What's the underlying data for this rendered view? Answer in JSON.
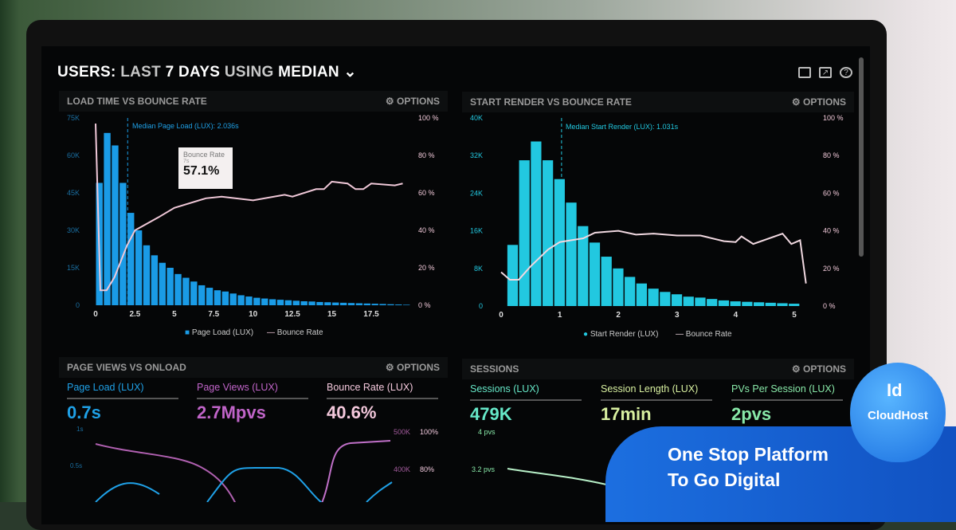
{
  "header": {
    "title_parts": [
      "USERS:",
      "LAST",
      "7 DAYS",
      "USING",
      "MEDIAN"
    ],
    "icons": [
      "monitor-icon",
      "share-icon",
      "help-icon"
    ]
  },
  "panels": {
    "load": {
      "title": "LOAD TIME VS BOUNCE RATE",
      "options": "OPTIONS",
      "median_label": "Median Page Load (LUX): 2.036s",
      "tooltip": {
        "title": "Bounce Rate",
        "x": "7s",
        "value": "57.1%"
      }
    },
    "render": {
      "title": "START RENDER VS BOUNCE RATE",
      "options": "OPTIONS",
      "median_label": "Median Start Render (LUX): 1.031s"
    },
    "pageviews": {
      "title": "PAGE VIEWS VS ONLOAD",
      "options": "OPTIONS",
      "kpis": [
        {
          "label": "Page Load (LUX)",
          "value": "0.7s",
          "color": "#1fa0e6"
        },
        {
          "label": "Page Views (LUX)",
          "value": "2.7Mpvs",
          "color": "#c064c8"
        },
        {
          "label": "Bounce Rate (LUX)",
          "value": "40.6%",
          "color": "#f4c8dc"
        }
      ],
      "axis": [
        "1s",
        "0.5s",
        "500K",
        "100%",
        "400K",
        "80%"
      ]
    },
    "sessions": {
      "title": "SESSIONS",
      "options": "OPTIONS",
      "kpis": [
        {
          "label": "Sessions (LUX)",
          "value": "479K",
          "color": "#66e8c8"
        },
        {
          "label": "Session Length (LUX)",
          "value": "17min",
          "color": "#d8f0a0"
        },
        {
          "label": "PVs Per Session (LUX)",
          "value": "2pvs",
          "color": "#88e8a8"
        }
      ],
      "axis": [
        "4 pvs",
        "3.2 pvs"
      ]
    }
  },
  "promo": {
    "line1": "One Stop Platform",
    "line2": "To Go Digital",
    "brand": "Id CloudHost"
  },
  "chart_data": [
    {
      "type": "bar",
      "title": "LOAD TIME VS BOUNCE RATE",
      "bar_color": "#1a9be6",
      "line_color": "#f0c8d8",
      "x_ticks": [
        "0",
        "2.5",
        "5",
        "7.5",
        "10",
        "12.5",
        "15",
        "17.5"
      ],
      "y_ticks": [
        "0",
        "15K",
        "30K",
        "45K",
        "60K",
        "75K"
      ],
      "y2_ticks": [
        "0 %",
        "20 %",
        "40 %",
        "60 %",
        "80 %",
        "100 %"
      ],
      "xlim": [
        0,
        19.5
      ],
      "ylim": [
        0,
        75000
      ],
      "y2lim": [
        0,
        100
      ],
      "bar_width": 0.5,
      "median": 2.036,
      "series": [
        {
          "name": "Page Load (LUX)",
          "x_start": 0,
          "values": [
            49000,
            69000,
            64000,
            49000,
            37000,
            30000,
            24000,
            20000,
            17000,
            15000,
            12500,
            11000,
            9500,
            8000,
            7000,
            6000,
            5500,
            4700,
            4000,
            3500,
            3000,
            2700,
            2400,
            2200,
            2000,
            1800,
            1600,
            1500,
            1300,
            1200,
            1100,
            1000,
            900,
            800,
            700,
            600,
            500,
            400,
            300,
            200
          ]
        },
        {
          "name": "Bounce Rate",
          "points": [
            [
              0,
              97
            ],
            [
              0.3,
              8
            ],
            [
              0.7,
              8
            ],
            [
              1.2,
              15
            ],
            [
              2,
              32
            ],
            [
              2.5,
              40
            ],
            [
              4,
              47
            ],
            [
              5,
              52
            ],
            [
              7,
              57.1
            ],
            [
              8,
              58
            ],
            [
              10,
              56
            ],
            [
              12,
              59
            ],
            [
              12.5,
              58
            ],
            [
              14,
              62
            ],
            [
              14.5,
              62
            ],
            [
              15,
              66
            ],
            [
              16,
              65
            ],
            [
              16.5,
              62
            ],
            [
              17,
              62
            ],
            [
              17.5,
              65
            ],
            [
              19,
              64
            ],
            [
              19.5,
              65
            ]
          ]
        }
      ]
    },
    {
      "type": "bar",
      "title": "START RENDER VS BOUNCE RATE",
      "bar_color": "#22c8e0",
      "line_color": "#f0d8e0",
      "x_ticks": [
        "0",
        "1",
        "2",
        "3",
        "4",
        "5"
      ],
      "y_ticks": [
        "0",
        "8K",
        "16K",
        "24K",
        "32K",
        "40K"
      ],
      "y2_ticks": [
        "0 %",
        "20 %",
        "40 %",
        "60 %",
        "80 %",
        "100 %"
      ],
      "xlim": [
        0,
        5.2
      ],
      "ylim": [
        0,
        40000
      ],
      "y2lim": [
        0,
        100
      ],
      "bar_width": 0.2,
      "median": 1.031,
      "series": [
        {
          "name": "Start Render (LUX)",
          "x_start": 0.1,
          "values": [
            13000,
            31000,
            35000,
            31000,
            27000,
            22000,
            17000,
            13500,
            10500,
            8000,
            6200,
            4800,
            3700,
            3000,
            2500,
            2000,
            1800,
            1500,
            1200,
            1000,
            900,
            800,
            700,
            600,
            500
          ]
        },
        {
          "name": "Bounce Rate",
          "points": [
            [
              0,
              18
            ],
            [
              0.15,
              14
            ],
            [
              0.3,
              14
            ],
            [
              0.5,
              21
            ],
            [
              0.8,
              30
            ],
            [
              1,
              34
            ],
            [
              1.4,
              36
            ],
            [
              1.6,
              39
            ],
            [
              2,
              40
            ],
            [
              2.3,
              38
            ],
            [
              2.6,
              38.5
            ],
            [
              3,
              37.5
            ],
            [
              3.4,
              37.5
            ],
            [
              3.8,
              34.5
            ],
            [
              4,
              34
            ],
            [
              4.1,
              37
            ],
            [
              4.3,
              33
            ],
            [
              4.8,
              38.5
            ],
            [
              4.95,
              33
            ],
            [
              5.1,
              35
            ],
            [
              5.2,
              12
            ]
          ]
        }
      ]
    }
  ]
}
